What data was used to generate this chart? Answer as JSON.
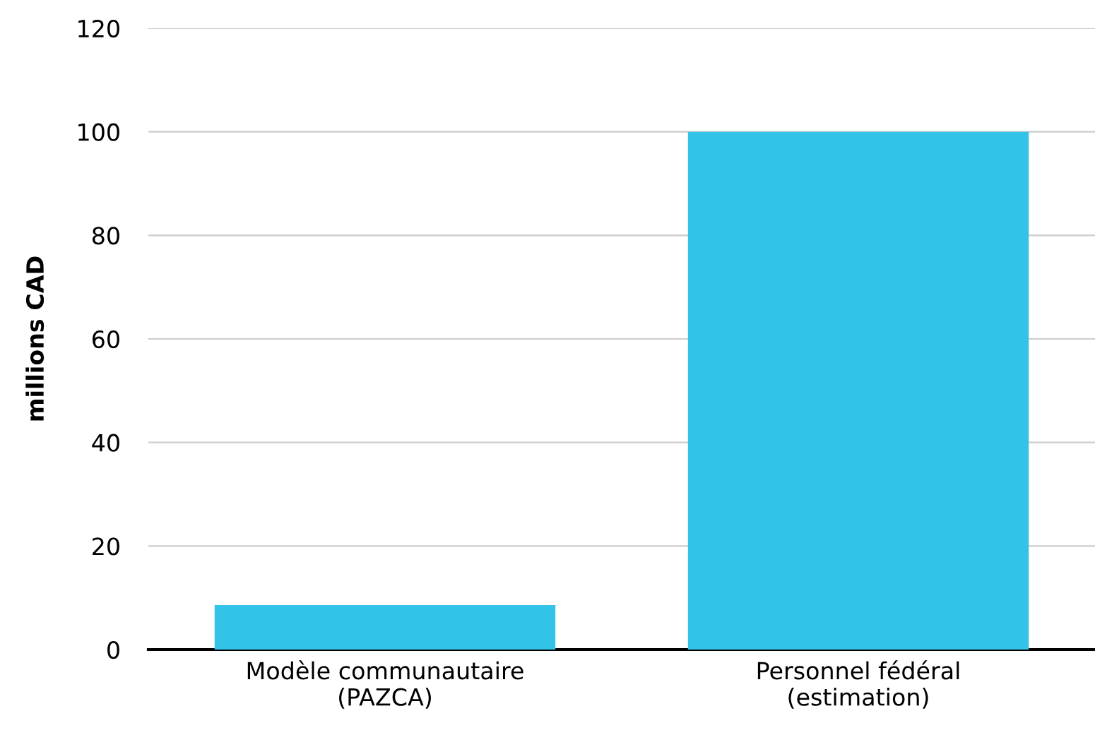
{
  "chart_data": {
    "type": "bar",
    "ylabel": "millions CAD",
    "categories": [
      "Modèle communautaire\n(PAZCA)",
      "Personnel fédéral\n(estimation)"
    ],
    "values": [
      8.6,
      100
    ],
    "color": "#33c3e8",
    "ylim": [
      0,
      120
    ],
    "yticks": [
      0,
      20,
      40,
      60,
      80,
      100,
      120
    ],
    "grid": "y"
  }
}
